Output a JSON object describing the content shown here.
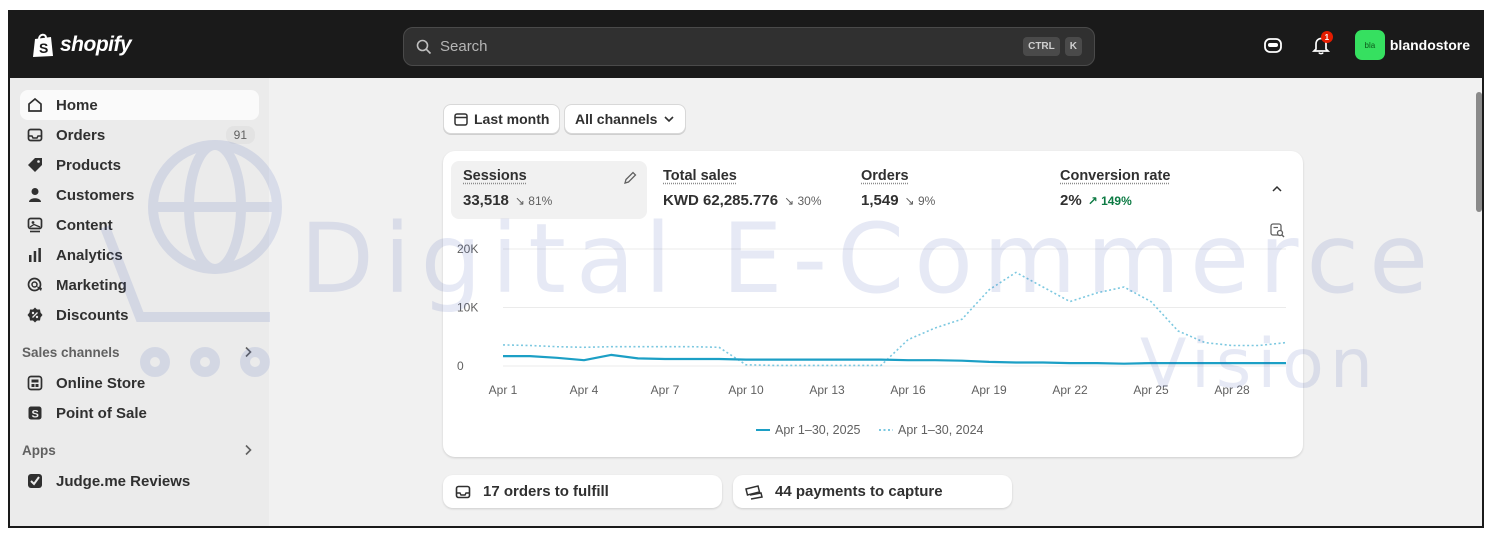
{
  "brand": {
    "logo_text": "shopify"
  },
  "search": {
    "placeholder": "Search",
    "shortcut_keys": [
      "CTRL",
      "K"
    ]
  },
  "topbar": {
    "notification_count": "1",
    "avatar_initials": "bla",
    "store_name": "blandostore"
  },
  "sidebar": {
    "items": [
      {
        "label": "Home",
        "icon": "home-icon",
        "active": true
      },
      {
        "label": "Orders",
        "icon": "orders-icon",
        "count": "91"
      },
      {
        "label": "Products",
        "icon": "tag-icon"
      },
      {
        "label": "Customers",
        "icon": "person-icon"
      },
      {
        "label": "Content",
        "icon": "content-icon"
      },
      {
        "label": "Analytics",
        "icon": "bar-chart-icon"
      },
      {
        "label": "Marketing",
        "icon": "target-icon"
      },
      {
        "label": "Discounts",
        "icon": "discount-icon"
      }
    ],
    "sales_channels": {
      "title": "Sales channels",
      "items": [
        {
          "label": "Online Store",
          "icon": "store-icon"
        },
        {
          "label": "Point of Sale",
          "icon": "pos-icon"
        }
      ]
    },
    "apps": {
      "title": "Apps",
      "items": [
        {
          "label": "Judge.me Reviews",
          "icon": "judgeme-icon"
        }
      ]
    }
  },
  "filters": {
    "date_range": "Last month",
    "channels": "All channels"
  },
  "metrics": [
    {
      "label": "Sessions",
      "value": "33,518",
      "change": "81%",
      "direction": "down"
    },
    {
      "label": "Total sales",
      "value": "KWD 62,285.776",
      "change": "30%",
      "direction": "down"
    },
    {
      "label": "Orders",
      "value": "1,549",
      "change": "9%",
      "direction": "down"
    },
    {
      "label": "Conversion rate",
      "value": "2%",
      "change": "149%",
      "direction": "up"
    }
  ],
  "chart_data": {
    "type": "line",
    "x": [
      "Apr 1",
      "Apr 2",
      "Apr 3",
      "Apr 4",
      "Apr 5",
      "Apr 6",
      "Apr 7",
      "Apr 8",
      "Apr 9",
      "Apr 10",
      "Apr 11",
      "Apr 12",
      "Apr 13",
      "Apr 14",
      "Apr 15",
      "Apr 16",
      "Apr 17",
      "Apr 18",
      "Apr 19",
      "Apr 20",
      "Apr 21",
      "Apr 22",
      "Apr 23",
      "Apr 24",
      "Apr 25",
      "Apr 26",
      "Apr 27",
      "Apr 28",
      "Apr 29",
      "Apr 30"
    ],
    "x_tick_labels": [
      "Apr 1",
      "Apr 4",
      "Apr 7",
      "Apr 10",
      "Apr 13",
      "Apr 16",
      "Apr 19",
      "Apr 22",
      "Apr 25",
      "Apr 28"
    ],
    "y_tick_labels": [
      "20K",
      "10K",
      "0"
    ],
    "ylim": [
      0,
      20000
    ],
    "grid": true,
    "legend_position": "bottom-center",
    "series": [
      {
        "name": "Apr 1–30, 2025",
        "style": "solid",
        "color": "#1c9fc5",
        "values": [
          1700,
          1700,
          1400,
          1000,
          1900,
          1300,
          1200,
          1200,
          1200,
          1100,
          1100,
          1100,
          1100,
          1100,
          1100,
          1000,
          1000,
          900,
          700,
          600,
          600,
          500,
          500,
          400,
          500,
          500,
          500,
          500,
          500,
          500
        ]
      },
      {
        "name": "Apr 1–30, 2024",
        "style": "dotted",
        "color": "#7cc8e0",
        "values": [
          3600,
          3500,
          3300,
          3200,
          3300,
          3300,
          3300,
          3300,
          3200,
          200,
          100,
          100,
          100,
          100,
          100,
          4500,
          6500,
          8000,
          13000,
          16000,
          13500,
          11000,
          12500,
          13500,
          11000,
          6000,
          4000,
          3500,
          3500,
          4000
        ]
      }
    ]
  },
  "tasks": [
    {
      "label": "17 orders to fulfill",
      "icon": "inbox-icon"
    },
    {
      "label": "44 payments to capture",
      "icon": "payment-icon"
    }
  ],
  "watermark": {
    "line1": "Digital E-Commerce",
    "line2": "Vision"
  },
  "colors": {
    "topbar": "#1a1a1a",
    "accent_line": "#1c9fc5",
    "positive": "#0c7a43",
    "avatar": "#36e060"
  }
}
